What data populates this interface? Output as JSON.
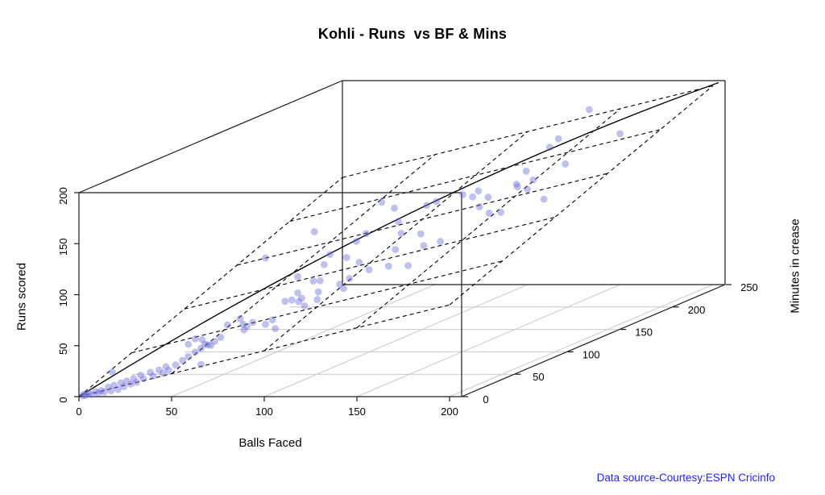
{
  "title": "Kohli - Runs  vs BF & Mins",
  "credit": "Data source-Courtesy:ESPN Cricinfo",
  "chart_data": {
    "type": "scatter3d",
    "title": "Kohli - Runs  vs BF & Mins",
    "axes": {
      "x": {
        "label": "Balls Faced",
        "ticks": [
          0,
          50,
          100,
          150,
          200
        ],
        "range": [
          0,
          206.5
        ]
      },
      "y": {
        "label": "Minutes in crease",
        "ticks": [
          0,
          50,
          100,
          150,
          200,
          250
        ],
        "range": [
          0,
          250
        ]
      },
      "z": {
        "label": "Runs scored",
        "ticks": [
          0,
          50,
          100,
          150,
          200
        ],
        "range": [
          0,
          200
        ]
      }
    },
    "grid": {
      "floor": true,
      "color": "#c9c9c9"
    },
    "point_style": {
      "color": "rgba(105,105,218,0.42)",
      "radius": 4.4
    },
    "fit_line": {
      "style": "solid",
      "color": "#000000",
      "from": [
        0,
        0,
        0
      ],
      "to": [
        203,
        250,
        198
      ]
    },
    "fit_plane": {
      "style": "dashed",
      "color": "#000000",
      "intercept": 0,
      "bf_coef": 0.45,
      "mins_coef": 0.42,
      "grid_bf": [
        0,
        50,
        100,
        150,
        200
      ],
      "grid_mins": [
        0,
        50,
        100,
        150,
        200,
        250
      ]
    },
    "points_columns": [
      "balls_faced",
      "minutes",
      "runs"
    ],
    "points": [
      [
        1,
        2,
        0
      ],
      [
        1,
        3,
        1
      ],
      [
        2,
        3,
        0
      ],
      [
        3,
        4,
        1
      ],
      [
        4,
        5,
        0
      ],
      [
        5,
        7,
        2
      ],
      [
        6,
        8,
        0
      ],
      [
        7,
        9,
        2
      ],
      [
        8,
        10,
        0
      ],
      [
        9,
        12,
        4
      ],
      [
        10,
        13,
        0
      ],
      [
        11,
        14,
        5
      ],
      [
        12,
        16,
        0
      ],
      [
        13,
        17,
        6
      ],
      [
        14,
        18,
        2
      ],
      [
        15,
        19,
        7
      ],
      [
        16,
        21,
        3
      ],
      [
        17,
        22,
        8
      ],
      [
        18,
        23,
        4
      ],
      [
        19,
        25,
        10
      ],
      [
        20,
        26,
        6
      ],
      [
        22,
        29,
        11
      ],
      [
        23,
        30,
        7
      ],
      [
        25,
        32,
        12
      ],
      [
        26,
        34,
        8
      ],
      [
        27,
        35,
        14
      ],
      [
        28,
        36,
        10
      ],
      [
        30,
        39,
        14
      ],
      [
        32,
        42,
        17
      ],
      [
        34,
        44,
        20
      ],
      [
        36,
        47,
        23
      ],
      [
        38,
        49,
        26
      ],
      [
        40,
        52,
        28
      ],
      [
        42,
        55,
        30
      ],
      [
        44,
        57,
        33
      ],
      [
        10,
        14,
        18
      ],
      [
        38,
        49,
        10
      ],
      [
        34,
        44,
        32
      ],
      [
        36,
        47,
        36
      ],
      [
        38,
        50,
        34
      ],
      [
        39,
        51,
        29
      ],
      [
        41,
        53,
        27
      ],
      [
        46,
        60,
        44
      ],
      [
        50,
        65,
        48
      ],
      [
        51,
        66,
        42
      ],
      [
        51,
        67,
        36
      ],
      [
        52,
        68,
        39
      ],
      [
        54,
        70,
        42
      ],
      [
        58,
        75,
        38
      ],
      [
        60,
        78,
        41
      ],
      [
        61,
        79,
        32
      ],
      [
        64,
        83,
        57
      ],
      [
        66,
        86,
        57
      ],
      [
        68,
        88,
        63
      ],
      [
        68,
        89,
        54
      ],
      [
        69,
        90,
        57
      ],
      [
        74,
        96,
        53
      ],
      [
        74,
        97,
        60
      ],
      [
        81,
        105,
        64
      ],
      [
        82,
        107,
        59
      ],
      [
        73,
        95,
        120
      ],
      [
        58,
        75,
        103
      ],
      [
        78,
        101,
        95
      ],
      [
        76,
        99,
        86
      ],
      [
        68,
        88,
        79
      ],
      [
        73,
        94,
        72
      ],
      [
        75,
        97,
        71
      ],
      [
        70,
        91,
        49
      ],
      [
        94,
        122,
        137
      ],
      [
        98,
        127,
        129
      ],
      [
        108,
        140,
        126
      ],
      [
        111,
        144,
        128
      ],
      [
        119,
        155,
        130
      ],
      [
        122,
        159,
        126
      ],
      [
        127,
        165,
        123
      ],
      [
        136,
        177,
        128
      ],
      [
        99,
        129,
        115
      ],
      [
        100,
        130,
        103
      ],
      [
        89,
        116,
        109
      ],
      [
        86,
        112,
        103
      ],
      [
        83,
        108,
        89
      ],
      [
        87,
        113,
        82
      ],
      [
        90,
        117,
        73
      ],
      [
        84,
        109,
        68
      ],
      [
        96,
        125,
        73
      ],
      [
        98,
        128,
        88
      ],
      [
        102,
        133,
        70
      ],
      [
        107,
        139,
        87
      ],
      [
        106,
        138,
        99
      ],
      [
        112,
        146,
        88
      ],
      [
        124,
        161,
        131
      ],
      [
        124,
        162,
        115
      ],
      [
        127,
        166,
        107
      ],
      [
        131,
        170,
        106
      ],
      [
        139,
        181,
        124
      ],
      [
        141,
        183,
        132
      ],
      [
        136,
        176,
        131
      ],
      [
        139,
        180,
        142
      ],
      [
        149,
        193,
        168
      ],
      [
        146,
        190,
        161
      ],
      [
        151,
        196,
        142
      ],
      [
        168,
        218,
        162
      ],
      [
        148,
        224,
        183
      ],
      [
        144,
        188,
        111
      ]
    ]
  }
}
